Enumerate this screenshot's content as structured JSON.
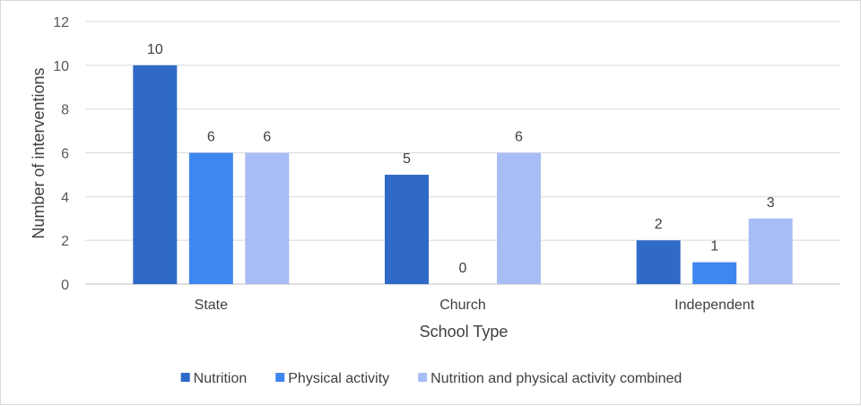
{
  "chart_data": {
    "type": "bar",
    "title": "",
    "xlabel": "School Type",
    "ylabel": "Number of interventions",
    "ylim": [
      0,
      12
    ],
    "yticks": [
      0,
      2,
      4,
      6,
      8,
      10,
      12
    ],
    "grid": true,
    "legend_position": "bottom",
    "categories": [
      "State",
      "Church",
      "Independent"
    ],
    "series": [
      {
        "name": "Nutrition",
        "color": "#2f6ac8",
        "values": [
          10,
          5,
          2
        ]
      },
      {
        "name": "Physical activity",
        "color": "#3f87f0",
        "values": [
          6,
          0,
          1
        ]
      },
      {
        "name": "Nutrition and physical activity combined",
        "color": "#a9bdf5",
        "values": [
          6,
          6,
          3
        ]
      }
    ]
  }
}
